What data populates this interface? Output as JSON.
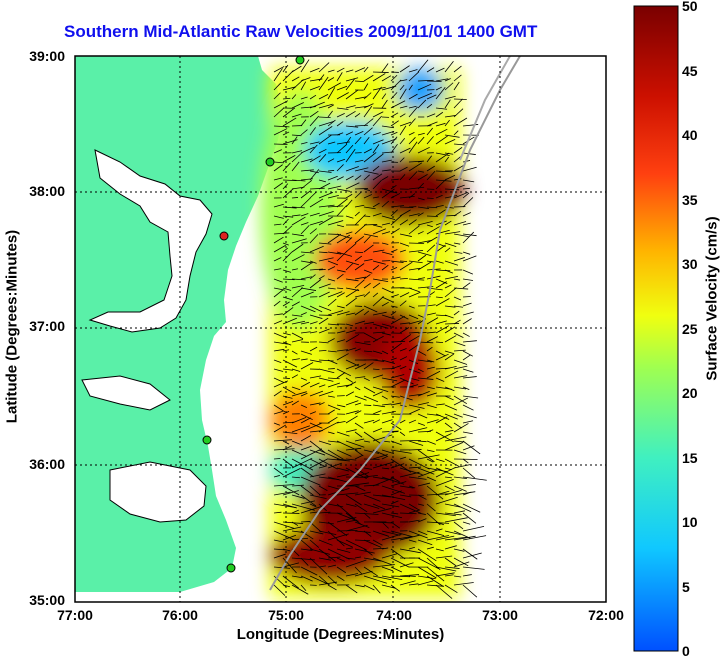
{
  "title": "Southern Mid-Atlantic Raw Velocities 2009/11/01 1400 GMT",
  "axes": {
    "xlabel": "Longitude (Degrees:Minutes)",
    "ylabel": "Latitude (Degrees:Minutes)",
    "xticks": [
      "77:00",
      "76:00",
      "75:00",
      "74:00",
      "73:00",
      "72:00"
    ],
    "yticks": [
      "39:00",
      "38:00",
      "37:00",
      "36:00",
      "35:00"
    ]
  },
  "colorbar": {
    "label": "Surface Velocity (cm/s)",
    "ticks": [
      "50",
      "45",
      "40",
      "35",
      "30",
      "25",
      "20",
      "15",
      "10",
      "5",
      "0"
    ],
    "range": [
      0,
      50
    ]
  },
  "colors": {
    "land": "#5af0a8",
    "water": "#ffffff",
    "title": "#1010ee",
    "station": "#22cc22",
    "station_alert": "#dd2222"
  },
  "stations": [
    "station-1",
    "station-2",
    "station-3",
    "station-4",
    "station-5",
    "station-6"
  ]
}
